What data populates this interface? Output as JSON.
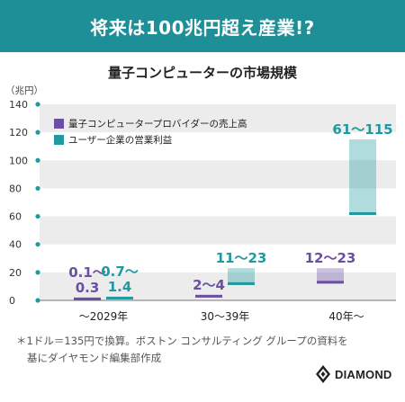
{
  "banner": {
    "title": "将来は100兆円超え産業!?"
  },
  "chart_data": {
    "type": "bar",
    "title": "量子コンピューターの市場規模",
    "unit_label": "（兆円）",
    "categories": [
      "〜2029年",
      "30〜39年",
      "40年〜"
    ],
    "yticks": [
      "140",
      "120",
      "100",
      "80",
      "60",
      "40",
      "20",
      "0"
    ],
    "ylim": [
      0,
      140
    ],
    "grid": "alternating bands",
    "legend_position": "top-left",
    "series": [
      {
        "name": "量子コンピュータープロバイダーの売上高",
        "color": "#6a4fa3",
        "ranges": [
          [
            0.1,
            0.3
          ],
          [
            2,
            4
          ],
          [
            12,
            23
          ]
        ],
        "labels": [
          [
            "0.1〜",
            "0.3"
          ],
          [
            "2〜4"
          ],
          [
            "12〜23"
          ]
        ]
      },
      {
        "name": "ユーザー企業の営業利益",
        "color": "#1e9aa0",
        "ranges": [
          [
            0.7,
            1.4
          ],
          [
            11,
            23
          ],
          [
            61,
            115
          ]
        ],
        "labels": [
          [
            "0.7〜",
            "1.4"
          ],
          [
            "11〜23"
          ],
          [
            "61〜115"
          ]
        ]
      }
    ]
  },
  "footnote": {
    "line1": "＊1ドル＝135円で換算。ボストン コンサルティング グループの資料を",
    "line2": "基にダイヤモンド編集部作成"
  },
  "logo": {
    "text": "DIAMOND",
    "icon": "diamond-logo-icon"
  }
}
